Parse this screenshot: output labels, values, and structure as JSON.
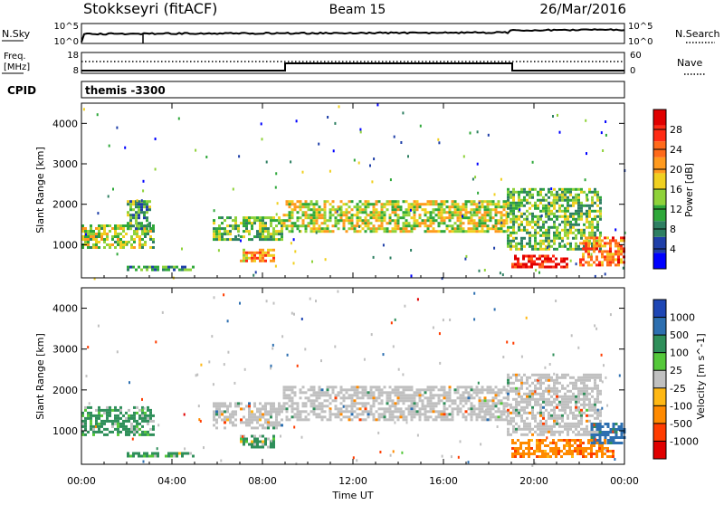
{
  "header": {
    "station": "Stokkseyri (fitACF)",
    "beam": "Beam 15",
    "date": "26/Mar/2016"
  },
  "noise_panel": {
    "left_label": "N.Sky",
    "left_top": "10^5",
    "left_bottom": "10^0",
    "right_label": "N.Search",
    "right_top": "10^5",
    "right_bottom": "10^0"
  },
  "freq_panel": {
    "left_label_1": "Freq.",
    "left_label_2": "[MHz]",
    "left_top": "18",
    "left_bottom": "8",
    "right_label": "Nave",
    "right_top": "60",
    "right_bottom": "0"
  },
  "cpid": {
    "label": "CPID",
    "value": "themis -3300"
  },
  "axes": {
    "ylabel": "Slant Range [km]",
    "xlabel": "Time UT",
    "x_ticks": [
      "00:00",
      "04:00",
      "08:00",
      "12:00",
      "16:00",
      "20:00",
      "00:00"
    ],
    "y_ticks": [
      "1000",
      "2000",
      "3000",
      "4000"
    ]
  },
  "colorbars": {
    "power": {
      "label": "Power [dB]",
      "ticks": [
        "4",
        "8",
        "12",
        "16",
        "20",
        "24",
        "28"
      ],
      "colors": [
        "#0000ff",
        "#1f3fa8",
        "#2e7f62",
        "#2fa83a",
        "#8fd23a",
        "#f0d020",
        "#ff9a1e",
        "#ff6a1a",
        "#ff2b14",
        "#e00000"
      ]
    },
    "velocity": {
      "label": "Velocity [m s^-1]",
      "ticks": [
        "1000",
        "500",
        "100",
        "25",
        "-25",
        "-100",
        "-500",
        "-1000"
      ],
      "colors": [
        "#1e46b4",
        "#2d6fb0",
        "#2f8f5a",
        "#55c83a",
        "#c0c0c0",
        "#ffb814",
        "#ff8a00",
        "#ff3c00",
        "#e00000"
      ]
    }
  },
  "chart_data": [
    {
      "type": "heatmap",
      "title": "Power",
      "xlabel": "Time UT",
      "ylabel": "Slant Range [km]",
      "xlim": [
        "00:00",
        "24:00"
      ],
      "ylim": [
        180,
        4500
      ],
      "zlabel": "Power [dB]",
      "zlim": [
        0,
        30
      ],
      "regions": [
        {
          "t": [
            0.0,
            3.2
          ],
          "range": [
            900,
            1500
          ],
          "value": 14
        },
        {
          "t": [
            2.0,
            3.0
          ],
          "range": [
            1400,
            2100
          ],
          "value": 10
        },
        {
          "t": [
            2.0,
            5.0
          ],
          "range": [
            380,
            480
          ],
          "value": 8
        },
        {
          "t": [
            5.8,
            8.9
          ],
          "range": [
            1100,
            1700
          ],
          "value": 12
        },
        {
          "t": [
            7.0,
            8.5
          ],
          "range": [
            600,
            900
          ],
          "value": 20
        },
        {
          "t": [
            8.9,
            18.8
          ],
          "range": [
            1300,
            2100
          ],
          "value": 15
        },
        {
          "t": [
            18.8,
            23.0
          ],
          "range": [
            900,
            2400
          ],
          "value": 12
        },
        {
          "t": [
            19.0,
            21.5
          ],
          "range": [
            450,
            750
          ],
          "value": 28
        },
        {
          "t": [
            22.0,
            24.0
          ],
          "range": [
            500,
            1200
          ],
          "value": 22
        }
      ]
    },
    {
      "type": "heatmap",
      "title": "Velocity",
      "xlabel": "Time UT",
      "ylabel": "Slant Range [km]",
      "xlim": [
        "00:00",
        "24:00"
      ],
      "ylim": [
        180,
        4500
      ],
      "zlabel": "Velocity [m s^-1]",
      "zlim": [
        -1000,
        1000
      ],
      "regions": [
        {
          "t": [
            0.0,
            3.2
          ],
          "range": [
            900,
            1600
          ],
          "value": 150
        },
        {
          "t": [
            2.0,
            5.0
          ],
          "range": [
            380,
            480
          ],
          "value": 100
        },
        {
          "t": [
            5.8,
            8.9
          ],
          "range": [
            1100,
            1700
          ],
          "value": 0
        },
        {
          "t": [
            7.0,
            8.5
          ],
          "range": [
            600,
            900
          ],
          "value": 90
        },
        {
          "t": [
            8.9,
            18.8
          ],
          "range": [
            1300,
            2100
          ],
          "value": 0
        },
        {
          "t": [
            18.8,
            23.0
          ],
          "range": [
            900,
            2400
          ],
          "value": 0
        },
        {
          "t": [
            19.0,
            23.5
          ],
          "range": [
            400,
            800
          ],
          "value": -200
        },
        {
          "t": [
            22.5,
            24.0
          ],
          "range": [
            700,
            1200
          ],
          "value": 400
        }
      ]
    }
  ]
}
